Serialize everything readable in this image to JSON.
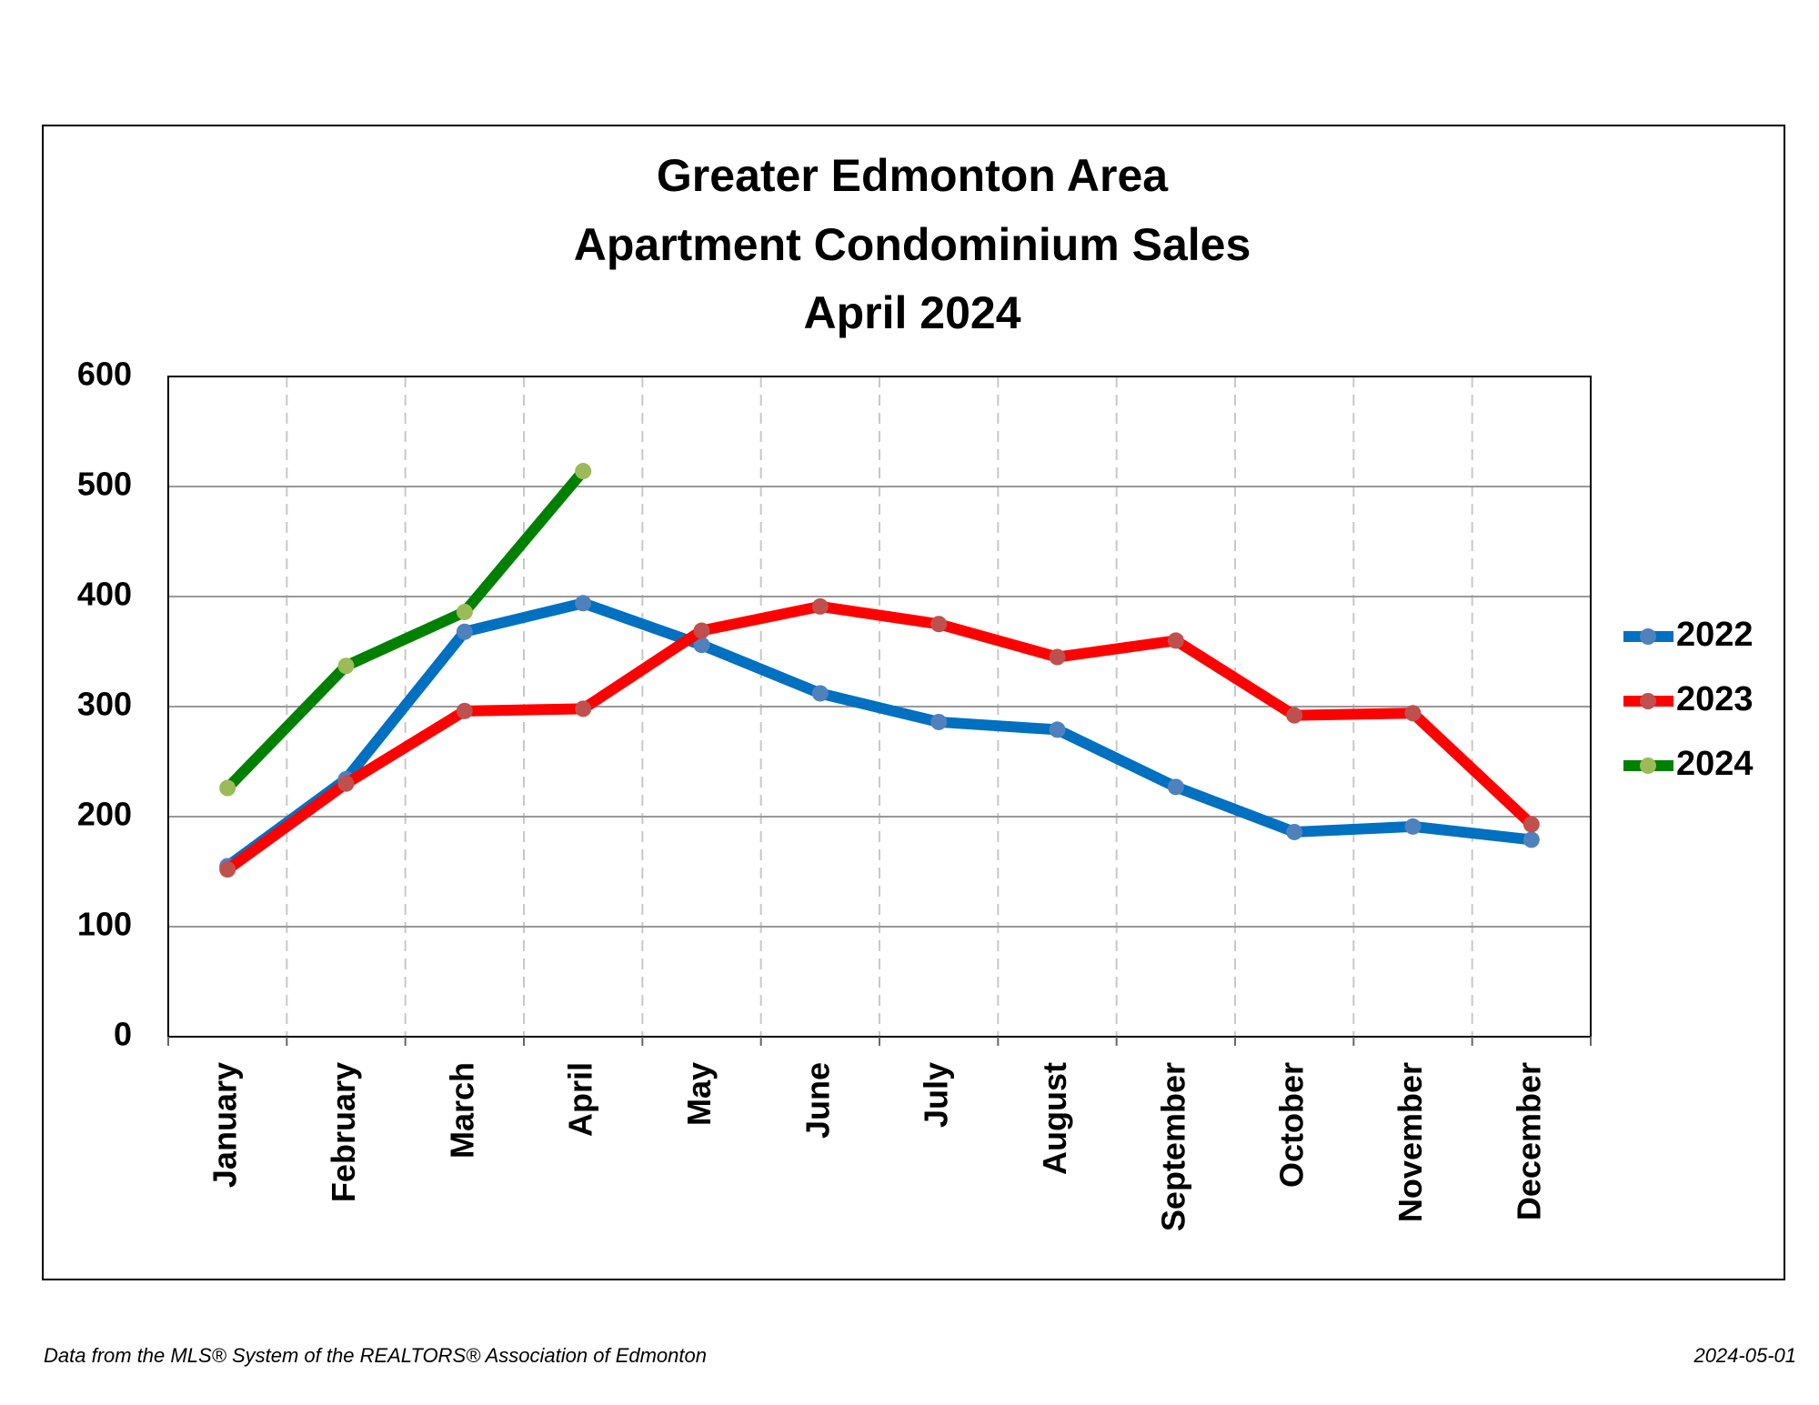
{
  "chart_data": {
    "type": "line",
    "title": [
      "Greater Edmonton Area",
      "Apartment Condominium Sales",
      "April 2024"
    ],
    "categories": [
      "January",
      "February",
      "March",
      "April",
      "May",
      "June",
      "July",
      "August",
      "September",
      "October",
      "November",
      "December"
    ],
    "series": [
      {
        "name": "2022",
        "color": "#0070c0",
        "marker_color": "#4f81bd",
        "values": [
          155,
          234,
          368,
          394,
          356,
          312,
          286,
          279,
          227,
          186,
          191,
          179
        ]
      },
      {
        "name": "2023",
        "color": "#ff0000",
        "marker_color": "#c0504d",
        "values": [
          152,
          230,
          296,
          298,
          369,
          391,
          375,
          345,
          360,
          292,
          294,
          193
        ]
      },
      {
        "name": "2024",
        "color": "#008000",
        "marker_color": "#9bbb59",
        "values": [
          226,
          337,
          386,
          514,
          null,
          null,
          null,
          null,
          null,
          null,
          null,
          null
        ]
      }
    ],
    "ylim": [
      0,
      600
    ],
    "yticks": [
      0,
      100,
      200,
      300,
      400,
      500,
      600
    ],
    "grid": true,
    "legend": "right",
    "source": "Data from the MLS® System of the REALTORS® Association of Edmonton",
    "date": "2024-05-01"
  }
}
